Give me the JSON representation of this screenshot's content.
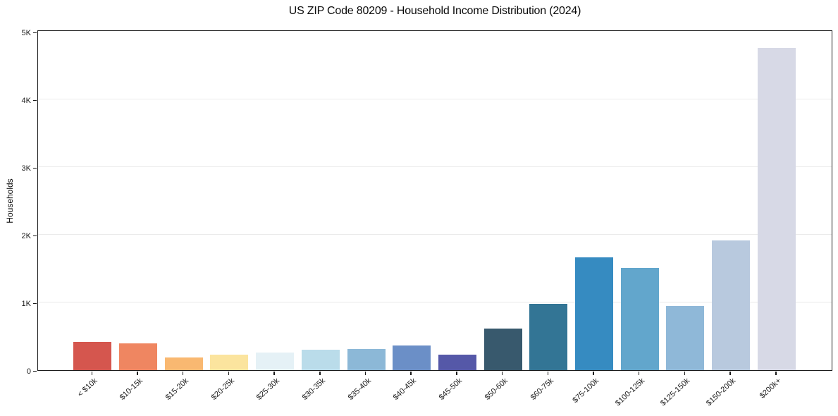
{
  "chart_data": {
    "type": "bar",
    "title": "US ZIP Code 80209 - Household Income Distribution (2024)",
    "xlabel": "",
    "ylabel": "Households",
    "categories": [
      "< $10k",
      "$10-15k",
      "$15-20k",
      "$20-25k",
      "$25-30k",
      "$30-35k",
      "$35-40k",
      "$40-45k",
      "$45-50k",
      "$50-60k",
      "$60-75k",
      "$75-100k",
      "$100-125k",
      "$125-150k",
      "$150-200k",
      "$200k+"
    ],
    "values": [
      415,
      400,
      190,
      230,
      260,
      300,
      315,
      365,
      230,
      610,
      975,
      1670,
      1515,
      950,
      1920,
      4760
    ],
    "bar_colors": [
      "#d5564e",
      "#ef8661",
      "#f9b871",
      "#fbe49e",
      "#e5f1f6",
      "#badcea",
      "#8cb8d7",
      "#6b8fc7",
      "#5558a8",
      "#38596d",
      "#337595",
      "#368bc1",
      "#62a6cc",
      "#8fb8d8",
      "#b8c9de",
      "#d7d9e6"
    ],
    "ylim": [
      0,
      5000
    ],
    "ytick_labels": [
      "0",
      "1K",
      "2K",
      "3K",
      "4K",
      "5K"
    ],
    "grid": "horizontal-light",
    "legend": "none"
  }
}
